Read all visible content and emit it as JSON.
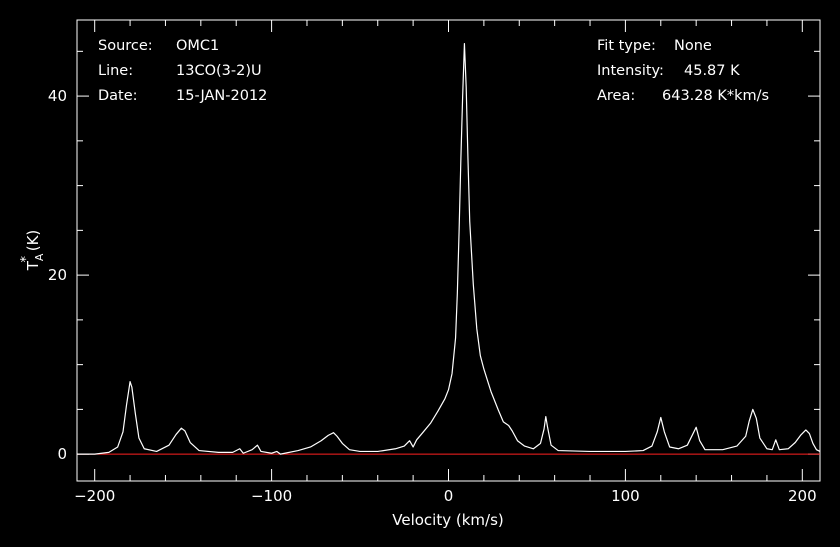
{
  "chart_data": {
    "type": "line",
    "title": "",
    "xlabel": "Velocity (km/s)",
    "ylabel": "T*A (K)",
    "ylabel_parts": {
      "main": "T",
      "sup": "*",
      "sub": "A",
      "unit": " (K)"
    },
    "xlim": [
      -210,
      210
    ],
    "ylim": [
      -3,
      48.5
    ],
    "x_ticks": [
      -200,
      -100,
      0,
      100,
      200
    ],
    "x_tick_labels": [
      "−200",
      "−100",
      "0",
      "100",
      "200"
    ],
    "y_ticks": [
      0,
      20,
      40
    ],
    "y_tick_labels": [
      "0",
      "20",
      "40"
    ],
    "grid": false,
    "background": "#000000",
    "axes_color": "#ffffff",
    "line_color": "#ffffff",
    "baseline": {
      "y": 0,
      "color": "#ff2020"
    },
    "info_left": [
      {
        "label": "Source:",
        "value": "OMC1"
      },
      {
        "label": "Line:",
        "value": "13CO(3-2)U"
      },
      {
        "label": "Date:",
        "value": "15-JAN-2012"
      }
    ],
    "info_right": [
      {
        "label": "Fit type:",
        "value": "None"
      },
      {
        "label": "Intensity:",
        "value": "45.87 K"
      },
      {
        "label": "Area:",
        "value": "643.28 K*km/s"
      }
    ],
    "series": [
      {
        "values_xy": [
          [
            -210,
            0.0
          ],
          [
            -200,
            0.0
          ],
          [
            -192,
            0.2
          ],
          [
            -187,
            0.8
          ],
          [
            -184,
            2.5
          ],
          [
            -182,
            5.5
          ],
          [
            -180,
            8.1
          ],
          [
            -179,
            7.5
          ],
          [
            -177,
            4.5
          ],
          [
            -175,
            1.8
          ],
          [
            -172,
            0.6
          ],
          [
            -165,
            0.3
          ],
          [
            -158,
            1.0
          ],
          [
            -154,
            2.2
          ],
          [
            -151,
            2.9
          ],
          [
            -149,
            2.6
          ],
          [
            -146,
            1.3
          ],
          [
            -141,
            0.4
          ],
          [
            -130,
            0.2
          ],
          [
            -122,
            0.2
          ],
          [
            -118,
            0.6
          ],
          [
            -116,
            0.1
          ],
          [
            -111,
            0.5
          ],
          [
            -108,
            1.0
          ],
          [
            -106,
            0.3
          ],
          [
            -100,
            0.1
          ],
          [
            -97,
            0.3
          ],
          [
            -95,
            0.0
          ],
          [
            -85,
            0.4
          ],
          [
            -78,
            0.8
          ],
          [
            -72,
            1.5
          ],
          [
            -68,
            2.1
          ],
          [
            -65,
            2.4
          ],
          [
            -63,
            2.0
          ],
          [
            -60,
            1.2
          ],
          [
            -56,
            0.5
          ],
          [
            -50,
            0.3
          ],
          [
            -40,
            0.3
          ],
          [
            -30,
            0.6
          ],
          [
            -25,
            0.9
          ],
          [
            -22,
            1.5
          ],
          [
            -20,
            0.8
          ],
          [
            -18,
            1.6
          ],
          [
            -15,
            2.3
          ],
          [
            -10,
            3.5
          ],
          [
            -6,
            4.8
          ],
          [
            -2,
            6.2
          ],
          [
            0,
            7.2
          ],
          [
            2,
            9.0
          ],
          [
            4,
            13.0
          ],
          [
            5,
            18.0
          ],
          [
            6,
            25.0
          ],
          [
            7,
            33.0
          ],
          [
            8,
            40.0
          ],
          [
            9,
            45.87
          ],
          [
            10,
            41.0
          ],
          [
            11,
            33.0
          ],
          [
            12,
            26.0
          ],
          [
            14,
            19.0
          ],
          [
            16,
            14.0
          ],
          [
            18,
            11.0
          ],
          [
            20,
            9.5
          ],
          [
            24,
            7.0
          ],
          [
            28,
            5.0
          ],
          [
            31,
            3.6
          ],
          [
            34,
            3.2
          ],
          [
            36,
            2.6
          ],
          [
            39,
            1.5
          ],
          [
            43,
            0.9
          ],
          [
            48,
            0.6
          ],
          [
            52,
            1.2
          ],
          [
            54,
            2.8
          ],
          [
            55,
            4.2
          ],
          [
            56,
            3.0
          ],
          [
            58,
            1.0
          ],
          [
            62,
            0.4
          ],
          [
            80,
            0.3
          ],
          [
            100,
            0.3
          ],
          [
            110,
            0.4
          ],
          [
            115,
            0.9
          ],
          [
            118,
            2.5
          ],
          [
            120,
            4.1
          ],
          [
            122,
            2.5
          ],
          [
            125,
            0.8
          ],
          [
            130,
            0.6
          ],
          [
            135,
            1.0
          ],
          [
            138,
            2.2
          ],
          [
            140,
            3.0
          ],
          [
            142,
            1.5
          ],
          [
            145,
            0.5
          ],
          [
            155,
            0.5
          ],
          [
            163,
            0.9
          ],
          [
            168,
            2.0
          ],
          [
            170,
            3.7
          ],
          [
            172,
            5.0
          ],
          [
            174,
            4.0
          ],
          [
            176,
            1.8
          ],
          [
            180,
            0.6
          ],
          [
            183,
            0.5
          ],
          [
            185,
            1.6
          ],
          [
            187,
            0.5
          ],
          [
            192,
            0.6
          ],
          [
            196,
            1.3
          ],
          [
            199,
            2.1
          ],
          [
            202,
            2.7
          ],
          [
            204,
            2.3
          ],
          [
            206,
            1.2
          ],
          [
            208,
            0.5
          ],
          [
            210,
            0.3
          ]
        ]
      }
    ]
  }
}
